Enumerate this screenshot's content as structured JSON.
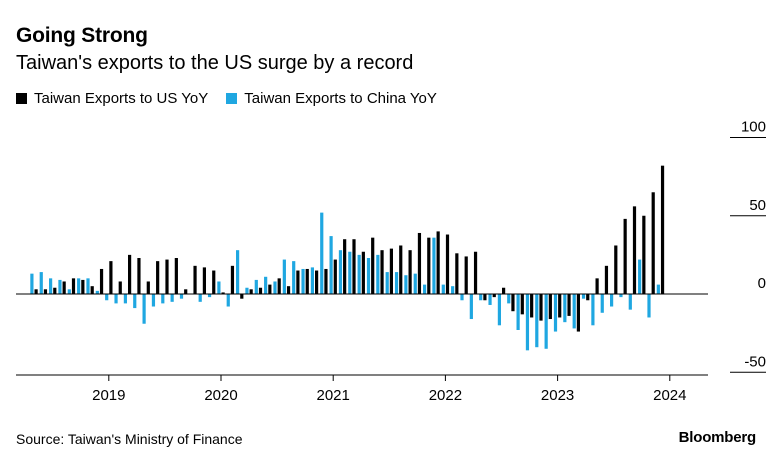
{
  "header": {
    "title": "Going Strong",
    "subtitle": "Taiwan's exports to the US surge by a record"
  },
  "legend": [
    {
      "label": "Taiwan Exports to US YoY",
      "color": "#000000"
    },
    {
      "label": "Taiwan Exports to China YoY",
      "color": "#1fa7e1"
    }
  ],
  "footer": {
    "source": "Source: Taiwan's Ministry of Finance",
    "brand": "Bloomberg"
  },
  "chart_data": {
    "type": "bar",
    "title": "Going Strong",
    "subtitle": "Taiwan's exports to the US surge by a record",
    "xlabel": "",
    "ylabel": "",
    "ylim": [
      -50,
      100
    ],
    "yticks": [
      100,
      50,
      0,
      -50
    ],
    "ytick_labels": [
      "100",
      "50",
      "0",
      "-50"
    ],
    "y_axis_position": "right",
    "x_ticks": [
      {
        "label": "2019",
        "index": 8
      },
      {
        "label": "2020",
        "index": 20
      },
      {
        "label": "2021",
        "index": 32
      },
      {
        "label": "2022",
        "index": 44
      },
      {
        "label": "2023",
        "index": 56
      },
      {
        "label": "2024",
        "index": 68
      }
    ],
    "start_period": "2018-05",
    "series": [
      {
        "name": "Taiwan Exports to US YoY",
        "color": "#000000",
        "values": [
          3,
          3,
          4,
          8,
          10,
          9,
          5,
          16,
          21,
          8,
          25,
          23,
          8,
          21,
          22,
          23,
          3,
          18,
          17,
          15,
          1,
          18,
          -3,
          3,
          4,
          6,
          10,
          5,
          15,
          16,
          15,
          16,
          22,
          35,
          35,
          27,
          36,
          28,
          29,
          31,
          28,
          39,
          36,
          40,
          38,
          26,
          24,
          27,
          -4,
          -2,
          4,
          -11,
          -13,
          -15,
          -17,
          -16,
          -15,
          -14,
          -24,
          -4,
          10,
          18,
          31,
          48,
          56,
          50,
          65,
          82,
          0,
          0
        ],
        "note": "last two entries are placeholders for missing months"
      },
      {
        "name": "Taiwan Exports to China YoY",
        "color": "#1fa7e1",
        "values": [
          13,
          14,
          10,
          9,
          3,
          10,
          10,
          2,
          -4,
          -6,
          -6,
          -9,
          -19,
          -8,
          -6,
          -5,
          -3,
          0,
          -5,
          -2,
          8,
          -8,
          28,
          4,
          9,
          11,
          8,
          22,
          21,
          16,
          17,
          52,
          37,
          28,
          27,
          25,
          23,
          25,
          14,
          14,
          12,
          13,
          6,
          36,
          6,
          5,
          -4,
          -16,
          -4,
          -7,
          -20,
          -6,
          -23,
          -36,
          -34,
          -35,
          -24,
          -18,
          -22,
          -3,
          -20,
          -12,
          -8,
          -2,
          -10,
          22,
          -15,
          6,
          0,
          0
        ],
        "note": "last two entries are placeholders for missing months"
      }
    ]
  }
}
